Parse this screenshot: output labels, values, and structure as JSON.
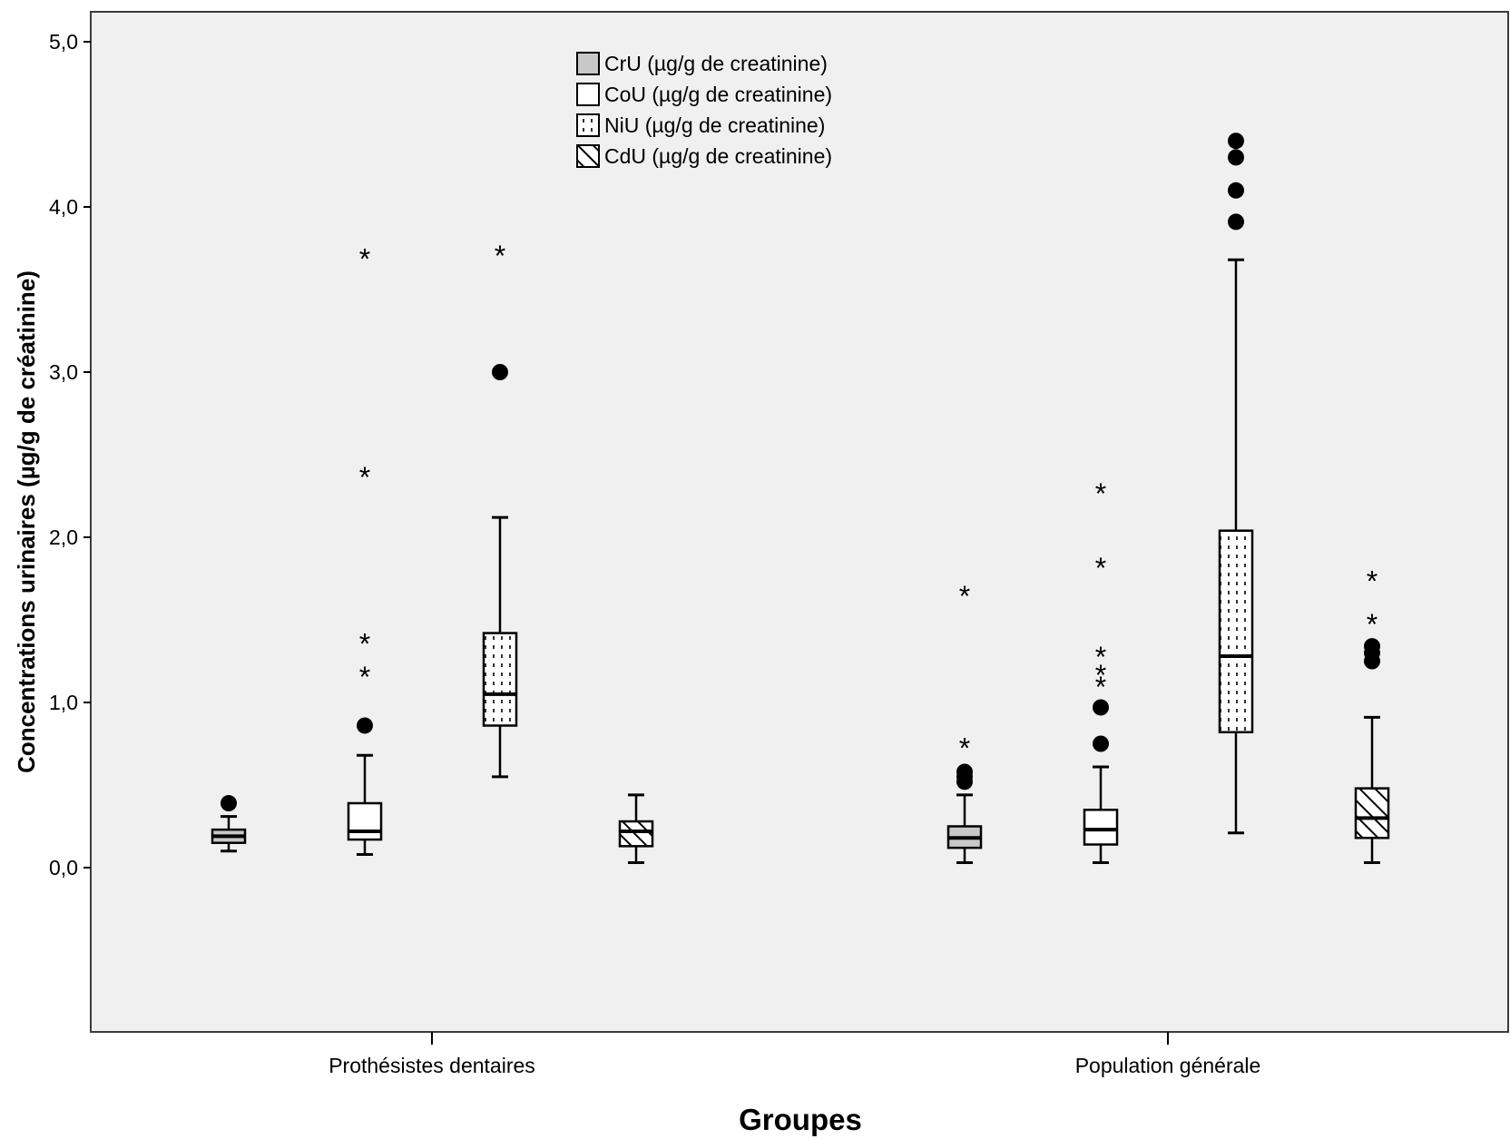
{
  "chart_data": {
    "type": "boxplot",
    "title": "",
    "xlabel": "Groupes",
    "ylabel": "Concentrations urinaires (µg/g de créatinine)",
    "ylim": [
      -1.0,
      5.2
    ],
    "yticks": [
      "0,0",
      "1,0",
      "2,0",
      "3,0",
      "4,0",
      "5,0"
    ],
    "ytick_values": [
      0,
      1,
      2,
      3,
      4,
      5
    ],
    "grid": false,
    "legend_position": "top-center",
    "categories": [
      "Prothésistes dentaires",
      "Population générale"
    ],
    "series": [
      {
        "name": "CrU (µg/g de creatinine)",
        "fill": "#c8c8c8",
        "pattern": "solid-grey",
        "boxes": [
          {
            "whisker_low": 0.1,
            "q1": 0.15,
            "median": 0.19,
            "q3": 0.23,
            "whisker_high": 0.31,
            "outliers": [
              0.39
            ],
            "extremes": []
          },
          {
            "whisker_low": 0.03,
            "q1": 0.12,
            "median": 0.18,
            "q3": 0.25,
            "whisker_high": 0.44,
            "outliers": [
              0.52,
              0.55,
              0.58
            ],
            "extremes": [
              0.74,
              1.66
            ]
          }
        ]
      },
      {
        "name": "CoU (µg/g de creatinine)",
        "fill": "#ffffff",
        "pattern": "solid-white",
        "boxes": [
          {
            "whisker_low": 0.08,
            "q1": 0.17,
            "median": 0.22,
            "q3": 0.39,
            "whisker_high": 0.68,
            "outliers": [
              0.86
            ],
            "extremes": [
              1.17,
              1.37,
              2.38,
              3.7
            ]
          },
          {
            "whisker_low": 0.03,
            "q1": 0.14,
            "median": 0.23,
            "q3": 0.35,
            "whisker_high": 0.61,
            "outliers": [
              0.75,
              0.97
            ],
            "extremes": [
              1.11,
              1.18,
              1.29,
              1.83,
              2.28
            ]
          }
        ]
      },
      {
        "name": "NiU (µg/g de creatinine)",
        "fill": "#ffffff",
        "pattern": "dotted",
        "boxes": [
          {
            "whisker_low": 0.55,
            "q1": 0.86,
            "median": 1.05,
            "q3": 1.42,
            "whisker_high": 2.12,
            "outliers": [
              3.0
            ],
            "extremes": [
              3.72
            ]
          },
          {
            "whisker_low": 0.21,
            "q1": 0.82,
            "median": 1.28,
            "q3": 2.04,
            "whisker_high": 3.68,
            "outliers": [
              3.91,
              4.1,
              4.3,
              4.4
            ],
            "extremes": []
          }
        ]
      },
      {
        "name": "CdU (µg/g de creatinine)",
        "fill": "#ffffff",
        "pattern": "hatched",
        "boxes": [
          {
            "whisker_low": 0.03,
            "q1": 0.13,
            "median": 0.22,
            "q3": 0.28,
            "whisker_high": 0.44,
            "outliers": [],
            "extremes": []
          },
          {
            "whisker_low": 0.03,
            "q1": 0.18,
            "median": 0.3,
            "q3": 0.48,
            "whisker_high": 0.91,
            "outliers": [
              1.25,
              1.3,
              1.34
            ],
            "extremes": [
              1.49,
              1.75
            ]
          }
        ]
      }
    ],
    "colors": {
      "plot_background": "#f0f0f0",
      "axis": "#3c3c3c",
      "stroke": "#000000"
    }
  }
}
